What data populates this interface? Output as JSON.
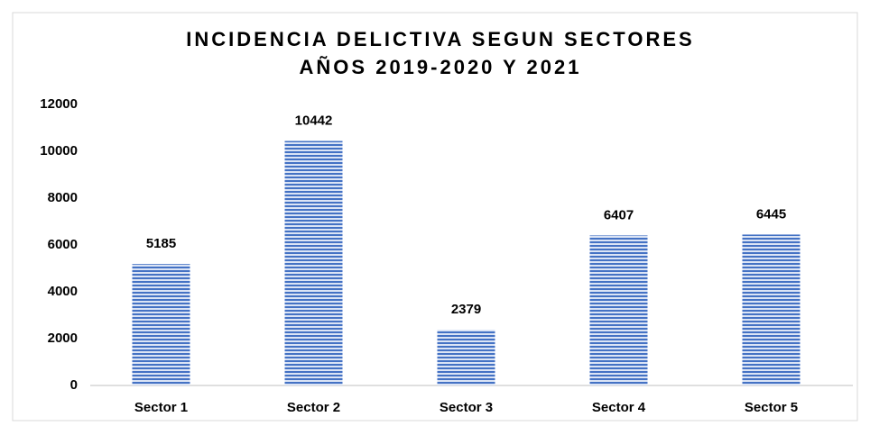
{
  "chart_data": {
    "type": "bar",
    "title": [
      "INCIDENCIA DELICTIVA SEGUN SECTORES",
      "AÑOS 2019-2020 Y 2021"
    ],
    "categories": [
      "Sector 1",
      "Sector 2",
      "Sector 3",
      "Sector 4",
      "Sector 5"
    ],
    "values": [
      5185,
      10442,
      2379,
      6407,
      6445
    ],
    "color": "#4472c4",
    "ylim": [
      0,
      12000
    ],
    "yticks": [
      0,
      2000,
      4000,
      6000,
      8000,
      10000,
      12000
    ],
    "grid": false
  }
}
